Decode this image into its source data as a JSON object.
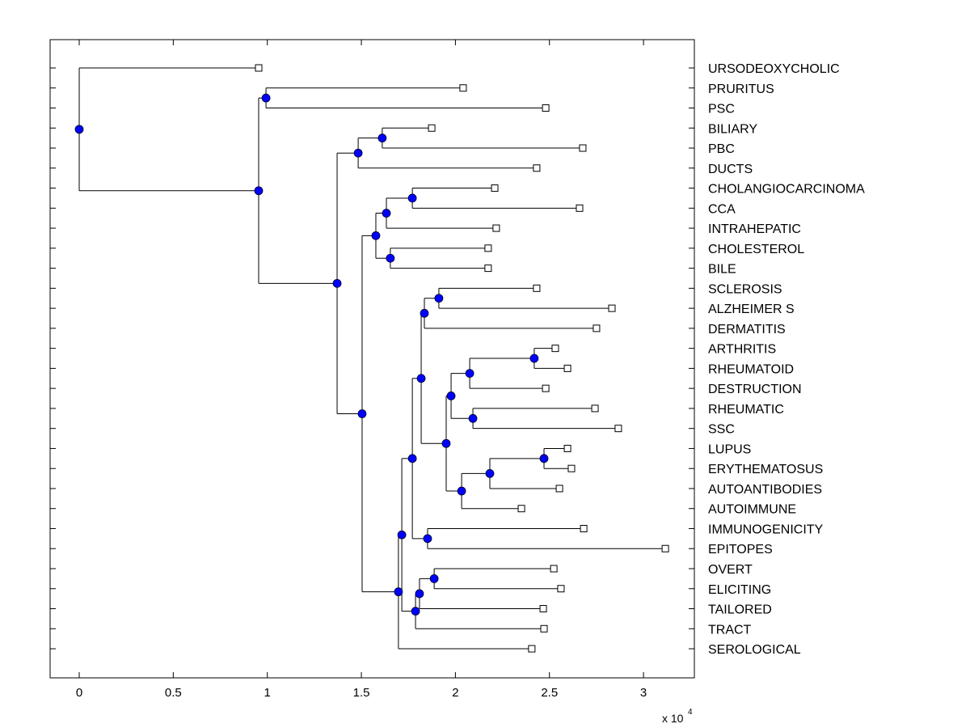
{
  "chart_data": {
    "type": "dendrogram",
    "title": "",
    "xlabel": "",
    "ylabel": "",
    "x_exponent_label": "x 10",
    "x_exponent_power": "4",
    "xlim": [
      -0.15,
      3.27
    ],
    "xticks": [
      0,
      0.5,
      1,
      1.5,
      2,
      2.5,
      3
    ],
    "xtick_labels": [
      "0",
      "0.5",
      "1",
      "1.5",
      "2",
      "2.5",
      "3"
    ],
    "x_units_note": "values in units of 10^4",
    "leaf_order": [
      "URSODEOXYCHOLIC",
      "PRURITUS",
      "PSC",
      "BILIARY",
      "PBC",
      "DUCTS",
      "CHOLANGIOCARCINOMA",
      "CCA",
      "INTRAHEPATIC",
      "CHOLESTEROL",
      "BILE",
      "SCLEROSIS",
      "ALZHEIMER S",
      "DERMATITIS",
      "ARTHRITIS",
      "RHEUMATOID",
      "DESTRUCTION",
      "RHEUMATIC",
      "SSC",
      "LUPUS",
      "ERYTHEMATOSUS",
      "AUTOANTIBODIES",
      "AUTOIMMUNE",
      "IMMUNOGENICITY",
      "EPITOPES",
      "OVERT",
      "ELICITING",
      "TAILORED",
      "TRACT",
      "SEROLOGICAL"
    ],
    "leaves": {
      "URSODEOXYCHOLIC": 0.954,
      "PRURITUS": 2.041,
      "PSC": 2.48,
      "BILIARY": 1.874,
      "PBC": 2.677,
      "DUCTS": 2.432,
      "CHOLANGIOCARCINOMA": 2.209,
      "CCA": 2.66,
      "INTRAHEPATIC": 2.217,
      "CHOLESTEROL": 2.174,
      "BILE": 2.174,
      "SCLEROSIS": 2.432,
      "ALZHEIMER S": 2.832,
      "DERMATITIS": 2.75,
      "ARTHRITIS": 2.531,
      "RHEUMATOID": 2.596,
      "DESTRUCTION": 2.48,
      "RHEUMATIC": 2.742,
      "SSC": 2.866,
      "LUPUS": 2.596,
      "ERYTHEMATOSUS": 2.617,
      "AUTOANTIBODIES": 2.553,
      "AUTOIMMUNE": 2.351,
      "IMMUNOGENICITY": 2.682,
      "EPITOPES": 3.116,
      "OVERT": 2.523,
      "ELICITING": 2.561,
      "TAILORED": 2.467,
      "TRACT": 2.471,
      "SEROLOGICAL": 2.406
    },
    "internal_nodes": {
      "root": {
        "x": 0.0,
        "children": [
          "URSODEOXYCHOLIC",
          "n1"
        ]
      },
      "n1": {
        "x": 0.954,
        "children": [
          "n_pp",
          "n2"
        ]
      },
      "n_pp": {
        "x": 0.993,
        "children": [
          "PRURITUS",
          "PSC"
        ]
      },
      "n2": {
        "x": 1.371,
        "children": [
          "n3",
          "n4"
        ]
      },
      "n3": {
        "x": 1.483,
        "children": [
          "n_bp",
          "DUCTS"
        ]
      },
      "n_bp": {
        "x": 1.611,
        "children": [
          "BILIARY",
          "PBC"
        ]
      },
      "n4": {
        "x": 1.504,
        "children": [
          "n5",
          "n6"
        ]
      },
      "n5": {
        "x": 1.577,
        "children": [
          "n7",
          "n8"
        ]
      },
      "n7": {
        "x": 1.633,
        "children": [
          "n9",
          "INTRAHEPATIC"
        ]
      },
      "n9": {
        "x": 1.771,
        "children": [
          "CHOLANGIOCARCINOMA",
          "CCA"
        ]
      },
      "n8": {
        "x": 1.654,
        "children": [
          "CHOLESTEROL",
          "BILE"
        ]
      },
      "n6": {
        "x": 1.697,
        "children": [
          "n10",
          "SEROLOGICAL"
        ]
      },
      "n10": {
        "x": 1.715,
        "children": [
          "n11",
          "n17"
        ]
      },
      "n11": {
        "x": 1.771,
        "children": [
          "n12",
          "n16"
        ]
      },
      "n12": {
        "x": 1.818,
        "children": [
          "n13",
          "n14"
        ]
      },
      "n13": {
        "x": 1.835,
        "children": [
          "n_sa",
          "DERMATITIS"
        ]
      },
      "n_sa": {
        "x": 1.912,
        "children": [
          "SCLEROSIS",
          "ALZHEIMER S"
        ]
      },
      "n14": {
        "x": 1.951,
        "children": [
          "n15",
          "n_aut"
        ]
      },
      "n15": {
        "x": 1.977,
        "children": [
          "n_ard",
          "n_rs"
        ]
      },
      "n_ard": {
        "x": 2.076,
        "children": [
          "n_ar",
          "DESTRUCTION"
        ]
      },
      "n_ar": {
        "x": 2.419,
        "children": [
          "ARTHRITIS",
          "RHEUMATOID"
        ]
      },
      "n_rs": {
        "x": 2.093,
        "children": [
          "RHEUMATIC",
          "SSC"
        ]
      },
      "n_aut": {
        "x": 2.033,
        "children": [
          "n_lea",
          "AUTOIMMUNE"
        ]
      },
      "n_lea": {
        "x": 2.183,
        "children": [
          "n_le",
          "AUTOANTIBODIES"
        ]
      },
      "n_le": {
        "x": 2.471,
        "children": [
          "LUPUS",
          "ERYTHEMATOSUS"
        ]
      },
      "n16": {
        "x": 1.852,
        "children": [
          "IMMUNOGENICITY",
          "EPITOPES"
        ]
      },
      "n17": {
        "x": 1.788,
        "children": [
          "n18",
          "TRACT"
        ]
      },
      "n18": {
        "x": 1.809,
        "children": [
          "n19",
          "TAILORED"
        ]
      },
      "n19": {
        "x": 1.887,
        "children": [
          "OVERT",
          "ELICITING"
        ]
      }
    },
    "root": "root",
    "styles": {
      "internal_marker_color": "#0000ff",
      "leaf_marker_color": "#ffffff",
      "line_color": "#000000"
    },
    "grid": false,
    "legend": "none"
  }
}
